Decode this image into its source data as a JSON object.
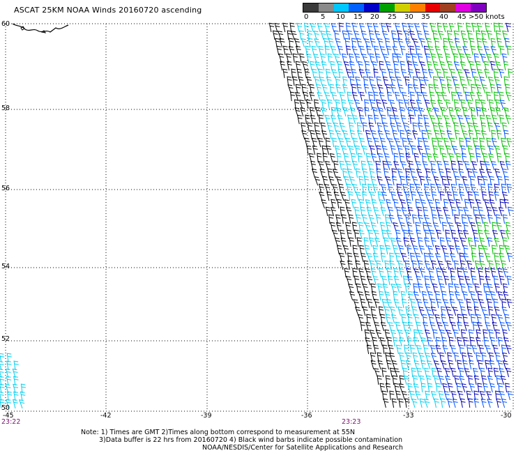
{
  "title": "ASCAT 25KM NOAA Winds 20160720 ascending",
  "legend": {
    "labels": [
      "0",
      "5",
      "10",
      "15",
      "20",
      "25",
      "30",
      "35",
      "40",
      "45",
      ">50 knots"
    ],
    "colors": [
      "#3a3a3a",
      "#8a8a8a",
      "#00c8ff",
      "#0060ff",
      "#0000c8",
      "#00a000",
      "#d0d000",
      "#ff8000",
      "#e80000",
      "#a04020",
      "#e000e0",
      "#8000c0"
    ]
  },
  "axes": {
    "lon_labels": [
      "-45",
      "-42",
      "-39",
      "-36",
      "-33",
      "-30"
    ],
    "lat_labels": [
      "60",
      "58",
      "56",
      "54",
      "52",
      "50"
    ]
  },
  "times": [
    "23:22",
    "23:23"
  ],
  "notes": [
    "Note: 1) Times are GMT 2)Times along bottom correspond to measurement at 55N",
    "3)Data buffer is 22 hrs from 20160720 4) Black wind barbs indicate possible contamination",
    "NOAA/NESDIS/Center for Satellite Applications and Research"
  ],
  "map_colors": {
    "grid": "#000000",
    "coast": "#000000",
    "contaminated": "#000000",
    "cyan": "#00d0f0",
    "blue": "#0050ff",
    "navy": "#0000b0",
    "green": "#00c000"
  }
}
